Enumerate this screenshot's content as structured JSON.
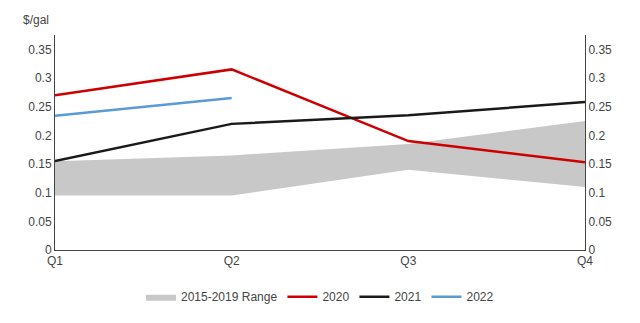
{
  "chart_data": {
    "type": "line",
    "ylabel": "$/gal",
    "categories": [
      "Q1",
      "Q2",
      "Q3",
      "Q4"
    ],
    "series": [
      {
        "name": "2015-2019 Range",
        "type": "range",
        "color": "#c8c8c8",
        "lower": [
          0.095,
          0.095,
          0.14,
          0.11
        ],
        "upper": [
          0.155,
          0.165,
          0.185,
          0.225
        ]
      },
      {
        "name": "2020",
        "type": "line",
        "color": "#cc0000",
        "values": [
          0.27,
          0.315,
          0.19,
          0.153
        ]
      },
      {
        "name": "2021",
        "type": "line",
        "color": "#1a1a1a",
        "values": [
          0.155,
          0.22,
          0.235,
          0.258
        ]
      },
      {
        "name": "2022",
        "type": "line",
        "color": "#5b9bd5",
        "values": [
          0.234,
          0.265,
          null,
          null
        ]
      }
    ],
    "ylim": [
      0,
      0.375
    ],
    "yticks": [
      0,
      0.05,
      0.1,
      0.15,
      0.2,
      0.25,
      0.3,
      0.35
    ],
    "y2lim": [
      0,
      0.375
    ],
    "y2ticks": [
      0,
      0.05,
      0.1,
      0.15,
      0.2,
      0.25,
      0.3,
      0.35
    ],
    "grid": false,
    "legend": "bottom"
  }
}
